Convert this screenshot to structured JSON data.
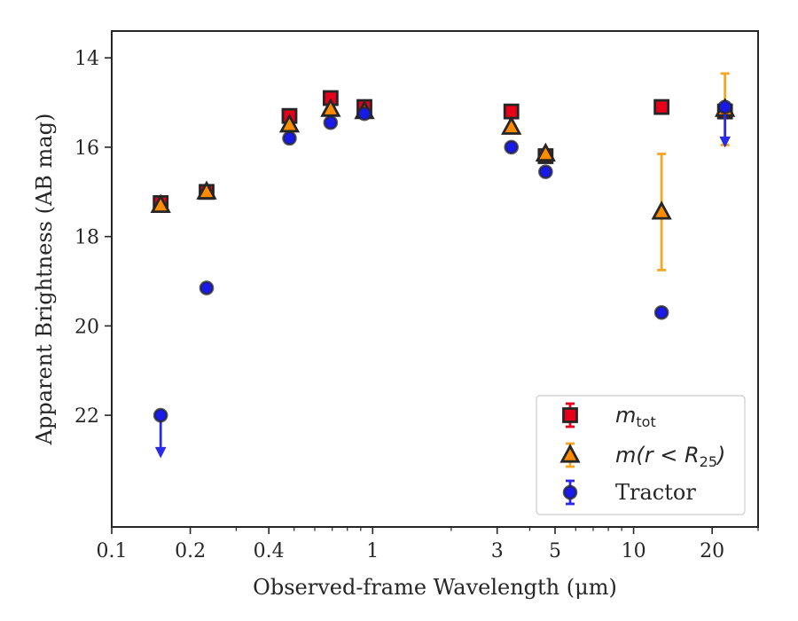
{
  "chart_data": {
    "type": "scatter",
    "xlabel": "Observed-frame Wavelength (μm)",
    "ylabel": "Apparent Brightness (AB mag)",
    "xscale": "log",
    "xlim": [
      0.1,
      30
    ],
    "ylim": [
      24.5,
      13.4
    ],
    "y_inverted": true,
    "x_ticks": [
      {
        "value": 0.1,
        "label": "0.1"
      },
      {
        "value": 0.2,
        "label": "0.2"
      },
      {
        "value": 0.4,
        "label": "0.4"
      },
      {
        "value": 1,
        "label": "1"
      },
      {
        "value": 3,
        "label": "3"
      },
      {
        "value": 5,
        "label": "5"
      },
      {
        "value": 10,
        "label": "10"
      },
      {
        "value": 20,
        "label": "20"
      }
    ],
    "x_minor_ticks": [
      0.3,
      0.5,
      0.6,
      0.7,
      0.8,
      0.9,
      2,
      4,
      6,
      7,
      8,
      9,
      30
    ],
    "y_ticks": [
      {
        "value": 14,
        "label": "14"
      },
      {
        "value": 16,
        "label": "16"
      },
      {
        "value": 18,
        "label": "18"
      },
      {
        "value": 20,
        "label": "20"
      },
      {
        "value": 22,
        "label": "22"
      }
    ],
    "grid": false,
    "legend_position": "lower right",
    "legend": [
      {
        "series": "mtot",
        "label": "m",
        "subscript": "tot"
      },
      {
        "series": "mr25",
        "label": "m(r < R",
        "subscript": "25",
        "suffix": ")"
      },
      {
        "series": "tractor",
        "label": "Tractor",
        "subscript": "",
        "suffix": ""
      }
    ],
    "series": [
      {
        "id": "mtot",
        "marker": "square",
        "color": "#e8001b",
        "ecolor": "#e8001b",
        "points": [
          {
            "x": 0.154,
            "y": 17.25,
            "err": 0.05
          },
          {
            "x": 0.231,
            "y": 17.0,
            "err": 0.05
          },
          {
            "x": 0.48,
            "y": 15.3,
            "err": 0.05
          },
          {
            "x": 0.69,
            "y": 14.9,
            "err": 0.05
          },
          {
            "x": 0.93,
            "y": 15.1,
            "err": 0.05
          },
          {
            "x": 3.4,
            "y": 15.2,
            "err": 0.05
          },
          {
            "x": 4.6,
            "y": 16.2,
            "err": 0.05
          },
          {
            "x": 12.8,
            "y": 15.1,
            "err": 0.05
          },
          {
            "x": 22.4,
            "y": 15.2,
            "err": 0.05
          }
        ]
      },
      {
        "id": "mr25",
        "marker": "triangle",
        "color": "#ff8c00",
        "ecolor": "#f5a623",
        "points": [
          {
            "x": 0.154,
            "y": 17.3,
            "err": 0.05
          },
          {
            "x": 0.231,
            "y": 17.0,
            "err": 0.05
          },
          {
            "x": 0.48,
            "y": 15.5,
            "err": 0.05
          },
          {
            "x": 0.69,
            "y": 15.15,
            "err": 0.05
          },
          {
            "x": 0.93,
            "y": 15.2,
            "err": 0.05
          },
          {
            "x": 3.4,
            "y": 15.55,
            "err": 0.05
          },
          {
            "x": 4.6,
            "y": 16.15,
            "err": 0.05
          },
          {
            "x": 12.8,
            "y": 17.45,
            "err": 1.3
          },
          {
            "x": 22.4,
            "y": 15.15,
            "err": 0.8
          }
        ]
      },
      {
        "id": "tractor",
        "marker": "circle",
        "color": "#1a1ae6",
        "ecolor": "#2a2ae6",
        "points": [
          {
            "x": 0.154,
            "y": 22.0,
            "err": 0.05,
            "limit": "upper",
            "arrow_to": 22.9
          },
          {
            "x": 0.231,
            "y": 19.15,
            "err": 0.05
          },
          {
            "x": 0.48,
            "y": 15.8,
            "err": 0.05
          },
          {
            "x": 0.69,
            "y": 15.45,
            "err": 0.05
          },
          {
            "x": 0.93,
            "y": 15.25,
            "err": 0.05
          },
          {
            "x": 3.4,
            "y": 16.0,
            "err": 0.05
          },
          {
            "x": 4.6,
            "y": 16.55,
            "err": 0.05
          },
          {
            "x": 12.8,
            "y": 19.7,
            "err": 0.05
          },
          {
            "x": 22.4,
            "y": 15.1,
            "err": 0.05,
            "limit": "upper",
            "arrow_to": 15.95
          }
        ]
      }
    ]
  }
}
